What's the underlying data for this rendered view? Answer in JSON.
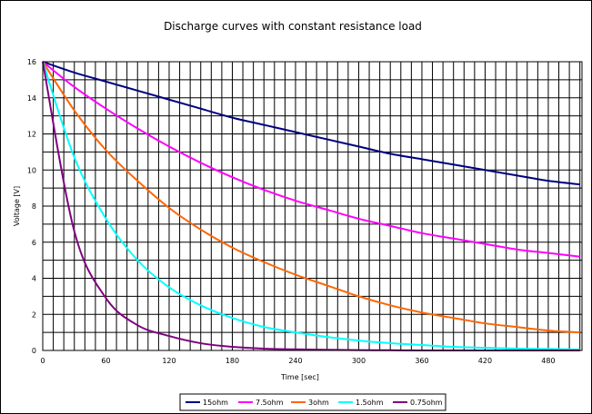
{
  "chart_data": {
    "type": "line",
    "title": "Discharge curves with constant resistance load",
    "xlabel": "Time [sec]",
    "ylabel": "Voltage [V]",
    "xlim": [
      0,
      512
    ],
    "ylim": [
      0,
      16
    ],
    "x_ticks": [
      0,
      60,
      120,
      180,
      240,
      300,
      360,
      420,
      480
    ],
    "y_ticks": [
      0,
      2,
      4,
      6,
      8,
      10,
      12,
      14,
      16
    ],
    "grid": true,
    "legend_position": "bottom",
    "x": [
      0,
      30,
      60,
      90,
      120,
      150,
      180,
      210,
      240,
      270,
      300,
      330,
      360,
      390,
      420,
      450,
      480,
      510
    ],
    "series": [
      {
        "name": "15ohm",
        "color": "#000080",
        "values": [
          16.0,
          15.4,
          14.9,
          14.4,
          13.9,
          13.4,
          12.9,
          12.5,
          12.1,
          11.7,
          11.3,
          10.9,
          10.6,
          10.3,
          10.0,
          9.7,
          9.4,
          9.2
        ]
      },
      {
        "name": "7.5ohm",
        "color": "#ff00ff",
        "values": [
          16.0,
          14.6,
          13.4,
          12.3,
          11.3,
          10.4,
          9.6,
          8.9,
          8.3,
          7.8,
          7.3,
          6.9,
          6.5,
          6.2,
          5.9,
          5.6,
          5.4,
          5.2
        ]
      },
      {
        "name": "3ohm",
        "color": "#ff6600",
        "values": [
          16.0,
          13.3,
          11.1,
          9.4,
          7.9,
          6.7,
          5.7,
          4.9,
          4.2,
          3.6,
          3.0,
          2.5,
          2.1,
          1.8,
          1.5,
          1.3,
          1.1,
          1.0
        ]
      },
      {
        "name": "1.5ohm",
        "color": "#00ffff",
        "values": [
          16.0,
          10.7,
          7.3,
          5.0,
          3.5,
          2.5,
          1.8,
          1.3,
          1.0,
          0.75,
          0.55,
          0.4,
          0.3,
          0.2,
          0.15,
          0.1,
          0.08,
          0.05
        ]
      },
      {
        "name": "0.75ohm",
        "color": "#800080",
        "values": [
          16.0,
          6.6,
          2.9,
          1.4,
          0.8,
          0.4,
          0.2,
          0.1,
          0.06,
          0.04,
          0.02,
          0.01,
          0.0,
          0.0,
          0.0,
          0.0,
          0.0,
          0.0
        ]
      }
    ]
  }
}
